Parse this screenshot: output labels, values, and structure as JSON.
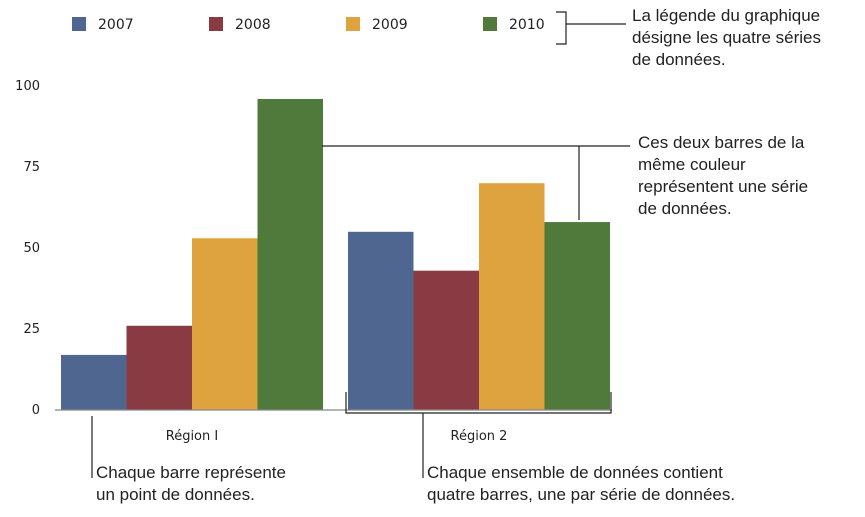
{
  "chart_data": {
    "type": "bar",
    "categories": [
      "Région I",
      "Région 2"
    ],
    "series": [
      {
        "name": "2007",
        "values": [
          17,
          55
        ],
        "color": "#4f6690"
      },
      {
        "name": "2008",
        "values": [
          26,
          43
        ],
        "color": "#8a3a43"
      },
      {
        "name": "2009",
        "values": [
          53,
          70
        ],
        "color": "#dea33e"
      },
      {
        "name": "2010",
        "values": [
          96,
          58
        ],
        "color": "#4f7a3c"
      }
    ],
    "ylim": [
      0,
      100
    ],
    "yticks": [
      0,
      25,
      50,
      75,
      100
    ],
    "legend_position": "top",
    "grid": false
  },
  "annotations": {
    "legend": [
      "La légende du graphique",
      "désigne les quatre séries",
      "de données."
    ],
    "series": [
      "Ces deux barres de la",
      "même couleur",
      "représentent une série",
      "de données."
    ],
    "bar": [
      "Chaque barre représente",
      "un point de données."
    ],
    "group": [
      "Chaque ensemble de données contient",
      "quatre barres, une par série de données."
    ]
  }
}
